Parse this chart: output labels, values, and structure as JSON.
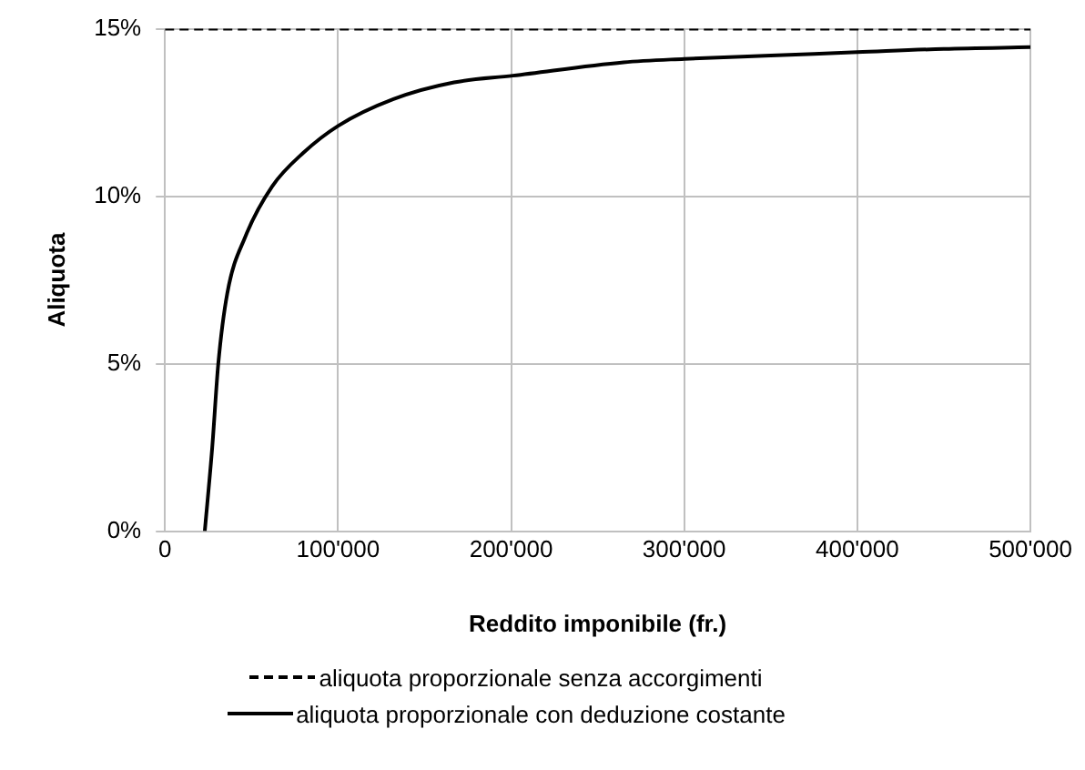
{
  "chart_data": {
    "type": "line",
    "xlabel": "Reddito imponibile (fr.)",
    "ylabel": "Aliquota",
    "xlim": [
      0,
      500000
    ],
    "xticks": [
      {
        "value": 0,
        "label": "0"
      },
      {
        "value": 100000,
        "label": "100'000"
      },
      {
        "value": 200000,
        "label": "200'000"
      },
      {
        "value": 300000,
        "label": "300'000"
      },
      {
        "value": 400000,
        "label": "400'000"
      },
      {
        "value": 500000,
        "label": "500'000"
      }
    ],
    "ylim": [
      0,
      15
    ],
    "yticks": [
      {
        "value": 0,
        "label": "0%"
      },
      {
        "value": 5,
        "label": "5%"
      },
      {
        "value": 10,
        "label": "10%"
      },
      {
        "value": 15,
        "label": "15%"
      }
    ],
    "grid": true,
    "legend": "bottom",
    "marker": "none",
    "series": [
      {
        "name": "aliquota proporzionale senza accorgimenti",
        "color": "#000000",
        "line_style": "dashed",
        "x": [
          0,
          500000
        ],
        "values": [
          15,
          15
        ]
      },
      {
        "name": "aliquota proporzionale con deduzione costante",
        "color": "#000000",
        "line_style": "solid",
        "x": [
          23000,
          27300,
          30800,
          36000,
          46500,
          62000,
          80000,
          100000,
          132000,
          167000,
          201000,
          265000,
          300000,
          350000,
          400000,
          450000,
          500000
        ],
        "values": [
          0,
          2.5,
          5,
          7.1,
          8.8,
          10.3,
          11.3,
          12.1,
          12.9,
          13.4,
          13.6,
          14.0,
          14.1,
          14.2,
          14.3,
          14.4,
          14.45
        ]
      }
    ]
  }
}
